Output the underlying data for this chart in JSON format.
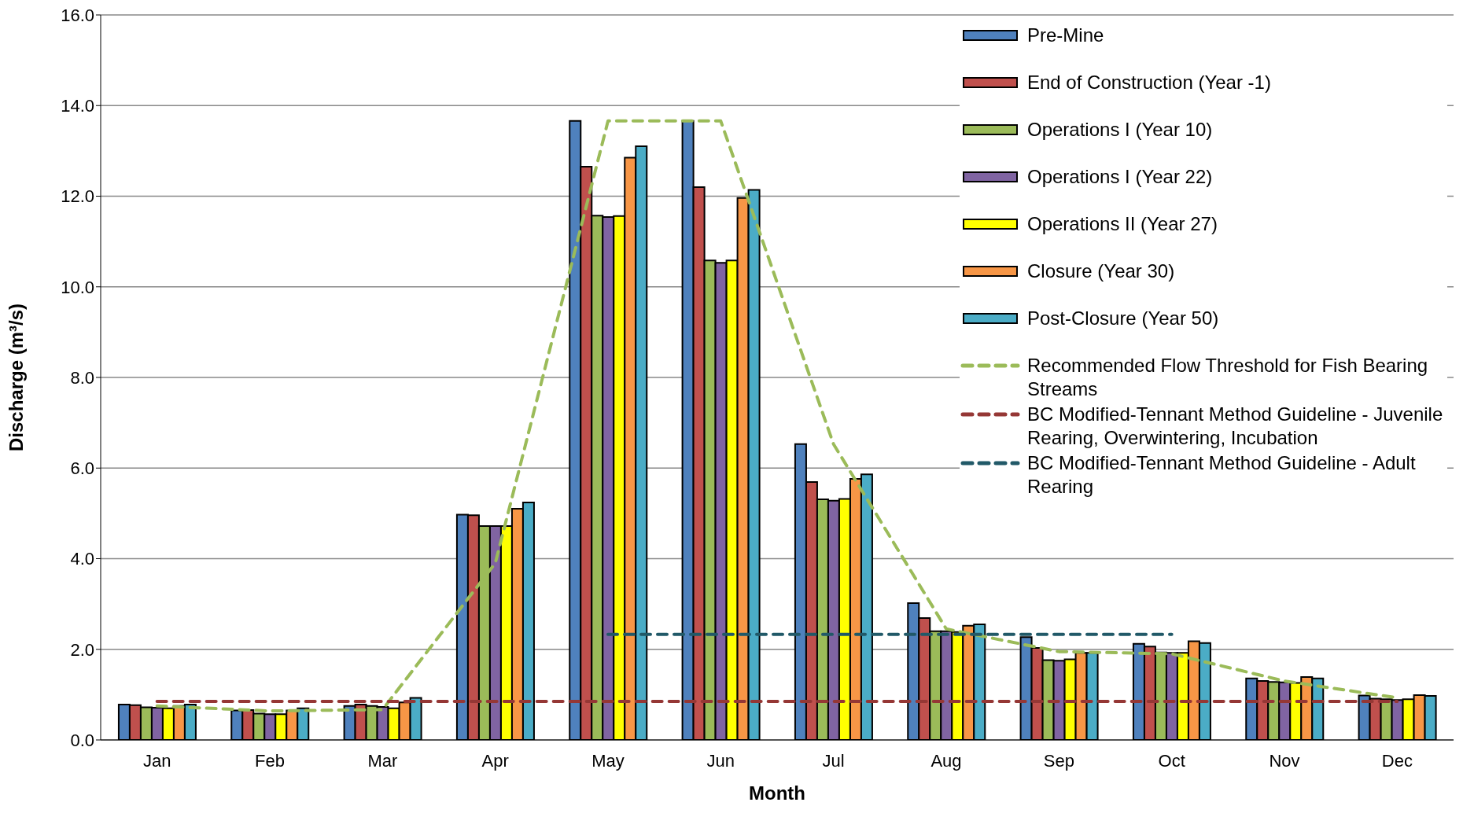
{
  "chart_data": {
    "type": "bar",
    "xlabel": "Month",
    "ylabel": "Discharge (m³/s)",
    "categories": [
      "Jan",
      "Feb",
      "Mar",
      "Apr",
      "May",
      "Jun",
      "Jul",
      "Aug",
      "Sep",
      "Oct",
      "Nov",
      "Dec"
    ],
    "series": [
      {
        "name": "Pre-Mine",
        "color": "#4f81bd",
        "values": [
          0.78,
          0.65,
          0.75,
          4.97,
          13.66,
          13.66,
          6.53,
          3.02,
          2.27,
          2.12,
          1.36,
          0.98
        ]
      },
      {
        "name": "End of Construction (Year -1)",
        "color": "#c0504d",
        "values": [
          0.77,
          0.66,
          0.78,
          4.96,
          12.65,
          12.2,
          5.69,
          2.69,
          2.03,
          2.06,
          1.3,
          0.91
        ]
      },
      {
        "name": "Operations I (Year 10)",
        "color": "#9bbb59",
        "values": [
          0.72,
          0.58,
          0.75,
          4.72,
          11.57,
          10.58,
          5.31,
          2.4,
          1.76,
          1.93,
          1.28,
          0.9
        ]
      },
      {
        "name": "Operations I (Year 22)",
        "color": "#8064a2",
        "values": [
          0.71,
          0.57,
          0.73,
          4.72,
          11.54,
          10.53,
          5.28,
          2.4,
          1.75,
          1.92,
          1.27,
          0.88
        ]
      },
      {
        "name": "Operations II (Year 27)",
        "color": "#ffff00",
        "values": [
          0.7,
          0.57,
          0.7,
          4.72,
          11.56,
          10.58,
          5.32,
          2.38,
          1.78,
          1.92,
          1.26,
          0.9
        ]
      },
      {
        "name": "Closure (Year 30)",
        "color": "#f79646",
        "values": [
          0.75,
          0.65,
          0.83,
          5.1,
          12.85,
          11.96,
          5.76,
          2.52,
          1.92,
          2.18,
          1.39,
          0.99
        ]
      },
      {
        "name": "Post-Closure (Year 50)",
        "color": "#4bacc6",
        "values": [
          0.78,
          0.7,
          0.93,
          5.24,
          13.1,
          12.14,
          5.86,
          2.55,
          1.92,
          2.14,
          1.36,
          0.97
        ]
      },
      {
        "name": "Recommended Flow Threshold for Fish Bearing Streams",
        "type": "line",
        "line_style": "dashed",
        "color": "#9bbb59",
        "values": [
          0.75,
          0.64,
          0.67,
          3.9,
          13.66,
          13.66,
          6.53,
          2.45,
          1.95,
          1.9,
          1.3,
          0.93
        ]
      },
      {
        "name": "BC Modified-Tennant Method Guideline - Juvenile Rearing, Overwintering, Incubation",
        "type": "line",
        "line_style": "dashed",
        "color": "#953735",
        "values": [
          0.85,
          0.85,
          0.85,
          0.85,
          0.85,
          0.85,
          0.85,
          0.85,
          0.85,
          0.85,
          0.85,
          0.85
        ]
      },
      {
        "name": "BC Modified-Tennant Method Guideline - Adult Rearing",
        "type": "line",
        "line_style": "dashed",
        "color": "#215968",
        "values": [
          null,
          null,
          null,
          null,
          2.33,
          2.33,
          2.33,
          2.33,
          2.33,
          2.33,
          null,
          null
        ]
      }
    ],
    "ylim": [
      0,
      16
    ],
    "yticks": [
      {
        "value": 0,
        "label": "0.0"
      },
      {
        "value": 2,
        "label": "2.0"
      },
      {
        "value": 4,
        "label": "4.0"
      },
      {
        "value": 6,
        "label": "6.0"
      },
      {
        "value": 8,
        "label": "8.0"
      },
      {
        "value": 10,
        "label": "10.0"
      },
      {
        "value": 12,
        "label": "12.0"
      },
      {
        "value": 14,
        "label": "14.0"
      },
      {
        "value": 16,
        "label": "16.0"
      }
    ],
    "grid": "y",
    "legend": "top right",
    "marker": "none"
  }
}
